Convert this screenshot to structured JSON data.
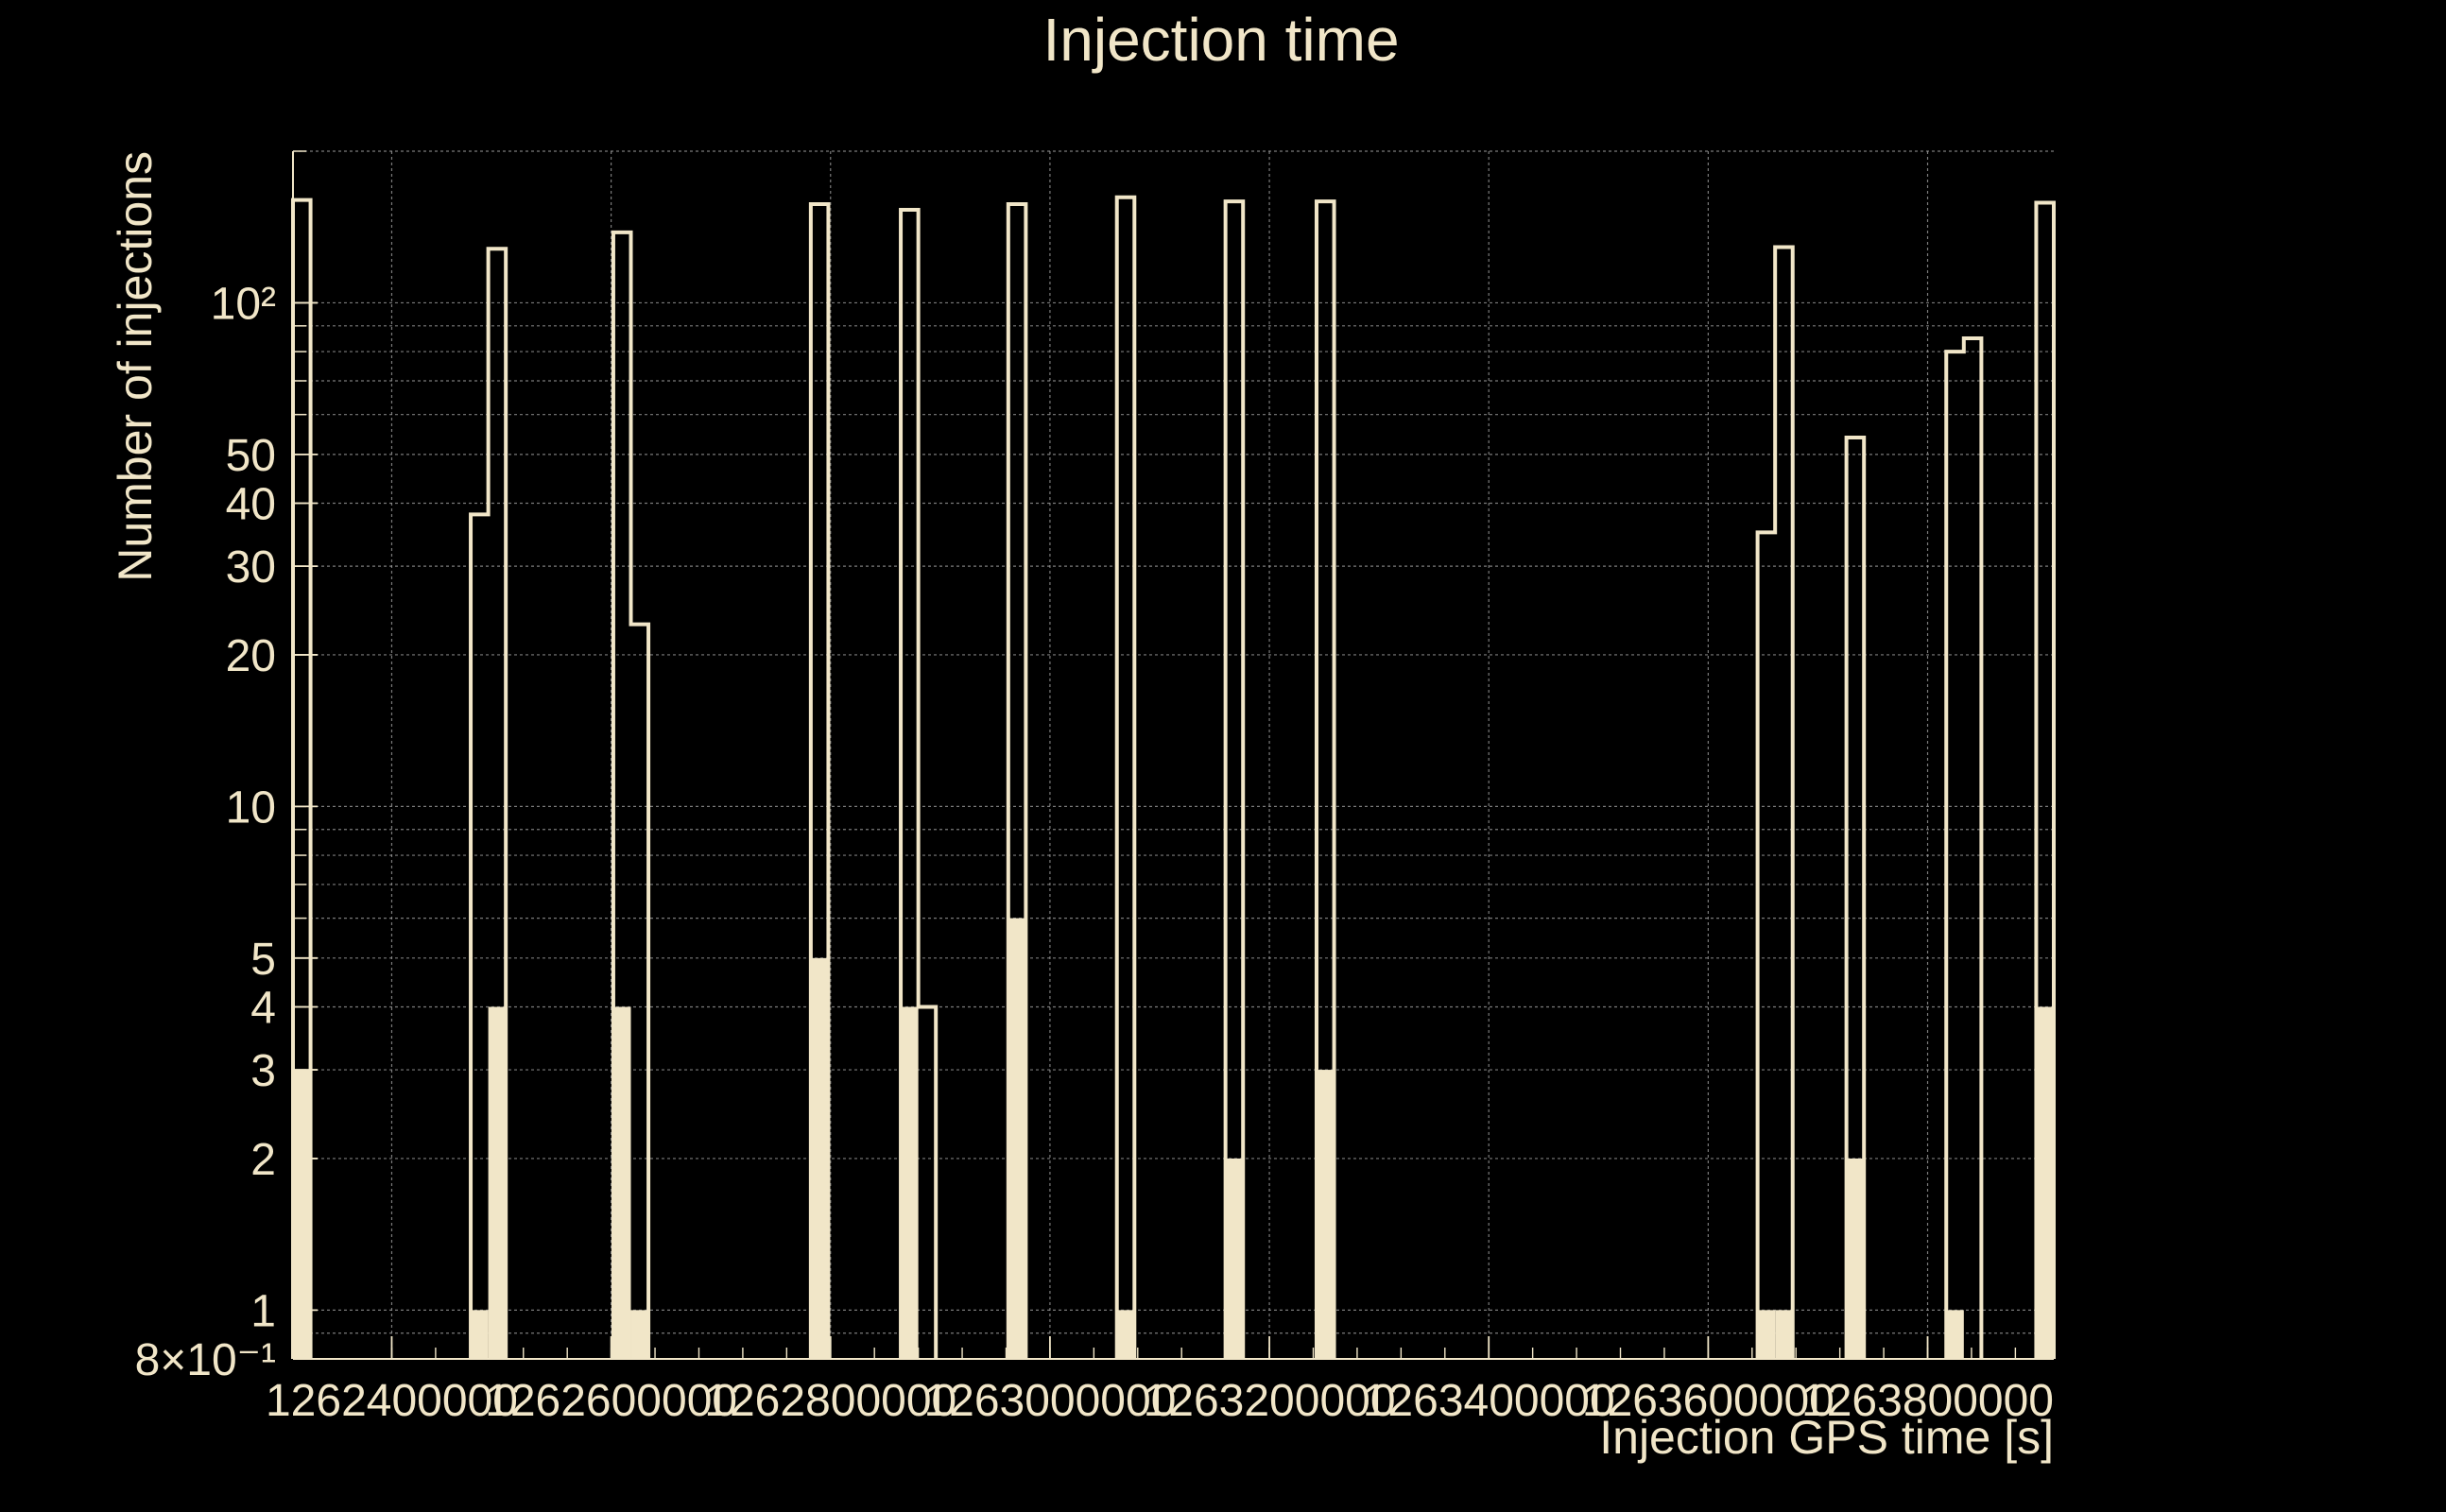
{
  "colors": {
    "background": "#000000",
    "foreground": "#f1e6c8",
    "grid": "#9a9a9a"
  },
  "chart_data": {
    "type": "bar",
    "title": "Injection time",
    "xlabel": "Injection GPS time [s]",
    "ylabel": "Number of injections",
    "xlim": [
      1262310000,
      1263915000
    ],
    "ylim": [
      0.8,
      200
    ],
    "yscale": "log",
    "grid": true,
    "legend": "none",
    "x_ticks": [
      {
        "value": 1262400000,
        "label": "1262400000"
      },
      {
        "value": 1262600000,
        "label": "1262600000"
      },
      {
        "value": 1262800000,
        "label": "1262800000"
      },
      {
        "value": 1263000000,
        "label": "1263000000"
      },
      {
        "value": 1263200000,
        "label": "1263200000"
      },
      {
        "value": 1263400000,
        "label": "1263400000"
      },
      {
        "value": 1263600000,
        "label": "1263600000"
      },
      {
        "value": 1263800000,
        "label": "1263800000"
      }
    ],
    "y_ticks": [
      {
        "value": 0.8,
        "label": "8×10⁻¹"
      },
      {
        "value": 1,
        "label": "1"
      },
      {
        "value": 2,
        "label": "2"
      },
      {
        "value": 3,
        "label": "3"
      },
      {
        "value": 4,
        "label": "4"
      },
      {
        "value": 5,
        "label": "5"
      },
      {
        "value": 10,
        "label": "10"
      },
      {
        "value": 20,
        "label": "20"
      },
      {
        "value": 30,
        "label": "30"
      },
      {
        "value": 40,
        "label": "40"
      },
      {
        "value": 50,
        "label": "50"
      },
      {
        "value": 100,
        "label": "10²"
      }
    ],
    "bin_width": 16000,
    "series": [
      {
        "style": "outline",
        "bins": [
          {
            "x": 1262310000,
            "y": 160
          },
          {
            "x": 1262472000,
            "y": 38
          },
          {
            "x": 1262488000,
            "y": 128
          },
          {
            "x": 1262602000,
            "y": 138
          },
          {
            "x": 1262618000,
            "y": 23
          },
          {
            "x": 1262782000,
            "y": 157
          },
          {
            "x": 1262864000,
            "y": 153
          },
          {
            "x": 1262880000,
            "y": 4
          },
          {
            "x": 1262962000,
            "y": 157
          },
          {
            "x": 1263061000,
            "y": 162
          },
          {
            "x": 1263160000,
            "y": 159
          },
          {
            "x": 1263243000,
            "y": 159
          },
          {
            "x": 1263645000,
            "y": 35
          },
          {
            "x": 1263661000,
            "y": 129
          },
          {
            "x": 1263726000,
            "y": 54
          },
          {
            "x": 1263817000,
            "y": 80
          },
          {
            "x": 1263833000,
            "y": 85
          },
          {
            "x": 1263899000,
            "y": 158
          }
        ]
      },
      {
        "style": "filled",
        "bins": [
          {
            "x": 1262310000,
            "y": 3
          },
          {
            "x": 1262472000,
            "y": 1
          },
          {
            "x": 1262488000,
            "y": 4
          },
          {
            "x": 1262602000,
            "y": 4
          },
          {
            "x": 1262618000,
            "y": 1
          },
          {
            "x": 1262782000,
            "y": 5
          },
          {
            "x": 1262864000,
            "y": 4
          },
          {
            "x": 1262962000,
            "y": 6
          },
          {
            "x": 1263061000,
            "y": 1
          },
          {
            "x": 1263160000,
            "y": 2
          },
          {
            "x": 1263243000,
            "y": 3
          },
          {
            "x": 1263645000,
            "y": 1
          },
          {
            "x": 1263661000,
            "y": 1
          },
          {
            "x": 1263726000,
            "y": 2
          },
          {
            "x": 1263817000,
            "y": 1
          },
          {
            "x": 1263899000,
            "y": 4
          }
        ]
      }
    ]
  }
}
